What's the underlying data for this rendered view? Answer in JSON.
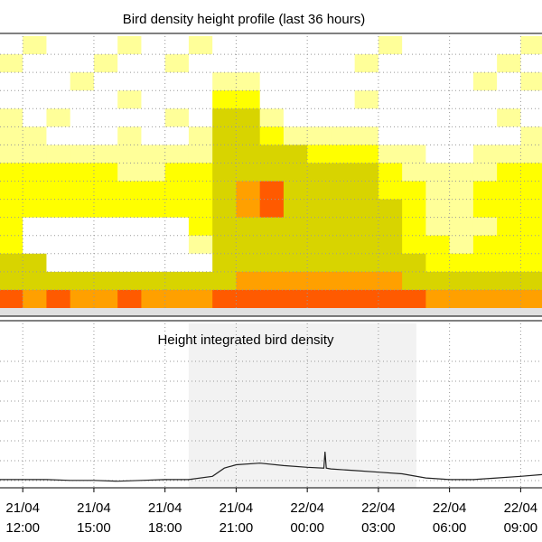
{
  "chart_data": [
    {
      "type": "heatmap",
      "title": "Bird density height profile (last 36 hours)",
      "xlim": [
        11.04,
        33.9
      ],
      "x": [
        11,
        12,
        13,
        14,
        15,
        16,
        17,
        18,
        19,
        20,
        21,
        22,
        23,
        24,
        25,
        26,
        27,
        28,
        29,
        30,
        31,
        32,
        33
      ],
      "colors": [
        "#ffffff",
        "#ffff99",
        "#ffff00",
        "#d8d400",
        "#ffa000",
        "#ff5a00"
      ],
      "z": [
        [
          0,
          1,
          0,
          0,
          0,
          1,
          0,
          0,
          1,
          0,
          0,
          0,
          0,
          0,
          0,
          0,
          1,
          0,
          0,
          0,
          0,
          0,
          1
        ],
        [
          1,
          0,
          0,
          0,
          1,
          0,
          0,
          1,
          0,
          0,
          0,
          0,
          0,
          0,
          0,
          1,
          0,
          0,
          0,
          0,
          0,
          1,
          0
        ],
        [
          0,
          0,
          0,
          1,
          0,
          0,
          0,
          0,
          0,
          1,
          1,
          0,
          0,
          0,
          0,
          0,
          0,
          0,
          0,
          0,
          1,
          0,
          1
        ],
        [
          0,
          0,
          0,
          0,
          0,
          1,
          0,
          0,
          0,
          2,
          2,
          0,
          0,
          0,
          0,
          1,
          0,
          0,
          0,
          0,
          0,
          0,
          0
        ],
        [
          1,
          0,
          1,
          0,
          0,
          0,
          0,
          1,
          0,
          3,
          3,
          1,
          0,
          0,
          0,
          0,
          0,
          0,
          0,
          0,
          0,
          1,
          0
        ],
        [
          1,
          1,
          0,
          0,
          0,
          1,
          0,
          0,
          1,
          3,
          3,
          2,
          1,
          1,
          1,
          1,
          0,
          0,
          0,
          0,
          0,
          0,
          1
        ],
        [
          1,
          1,
          1,
          1,
          1,
          1,
          1,
          1,
          1,
          3,
          3,
          3,
          3,
          2,
          2,
          2,
          1,
          1,
          0,
          0,
          1,
          1,
          1
        ],
        [
          2,
          2,
          2,
          2,
          2,
          1,
          1,
          2,
          2,
          3,
          3,
          3,
          3,
          3,
          3,
          3,
          2,
          1,
          1,
          1,
          1,
          2,
          2
        ],
        [
          2,
          2,
          2,
          2,
          2,
          2,
          2,
          2,
          2,
          3,
          4,
          5,
          3,
          3,
          3,
          3,
          2,
          2,
          1,
          1,
          2,
          2,
          2
        ],
        [
          2,
          2,
          2,
          2,
          2,
          2,
          2,
          2,
          2,
          3,
          4,
          5,
          3,
          3,
          3,
          3,
          3,
          2,
          1,
          1,
          2,
          2,
          2
        ],
        [
          2,
          0,
          0,
          0,
          0,
          0,
          0,
          0,
          2,
          3,
          3,
          3,
          3,
          3,
          3,
          3,
          3,
          2,
          1,
          1,
          1,
          2,
          2
        ],
        [
          2,
          0,
          0,
          0,
          0,
          0,
          0,
          0,
          1,
          3,
          3,
          3,
          3,
          3,
          3,
          3,
          3,
          2,
          2,
          1,
          2,
          2,
          2
        ],
        [
          3,
          3,
          0,
          0,
          0,
          0,
          0,
          0,
          0,
          3,
          3,
          3,
          3,
          3,
          3,
          3,
          3,
          3,
          2,
          2,
          2,
          2,
          2
        ],
        [
          3,
          3,
          3,
          3,
          3,
          3,
          3,
          3,
          3,
          3,
          4,
          4,
          4,
          4,
          4,
          4,
          4,
          3,
          3,
          3,
          3,
          3,
          3
        ],
        [
          5,
          4,
          5,
          4,
          4,
          5,
          4,
          4,
          4,
          5,
          5,
          5,
          5,
          5,
          5,
          5,
          5,
          5,
          4,
          4,
          4,
          4,
          4
        ]
      ]
    },
    {
      "type": "line",
      "title": "Height integrated bird density",
      "color": "#222222",
      "xlim": [
        11.04,
        33.9
      ],
      "ylim": [
        0,
        100
      ],
      "shaded_x": [
        19.0,
        28.6
      ],
      "x": [
        11,
        12,
        13,
        14,
        15,
        16,
        17,
        18,
        19,
        20,
        20.5,
        21,
        22,
        23,
        24,
        24.7,
        24.75,
        24.8,
        25,
        26,
        27,
        28,
        29,
        30,
        31,
        32,
        33,
        33.9
      ],
      "values": [
        5,
        5,
        5,
        4.5,
        4.5,
        4,
        4.5,
        5,
        5,
        7,
        12,
        14,
        15,
        13.5,
        12.5,
        12,
        22,
        12,
        11.5,
        10.5,
        9.5,
        8.5,
        6,
        5,
        5,
        6,
        7,
        8
      ],
      "xticks": [
        {
          "value": 12,
          "label": [
            "21/04",
            "12:00"
          ]
        },
        {
          "value": 15,
          "label": [
            "21/04",
            "15:00"
          ]
        },
        {
          "value": 18,
          "label": [
            "21/04",
            "18:00"
          ]
        },
        {
          "value": 21,
          "label": [
            "21/04",
            "21:00"
          ]
        },
        {
          "value": 24,
          "label": [
            "22/04",
            "00:00"
          ]
        },
        {
          "value": 27,
          "label": [
            "22/04",
            "03:00"
          ]
        },
        {
          "value": 30,
          "label": [
            "22/04",
            "06:00"
          ]
        },
        {
          "value": 33,
          "label": [
            "22/04",
            "09:00"
          ]
        }
      ]
    }
  ]
}
